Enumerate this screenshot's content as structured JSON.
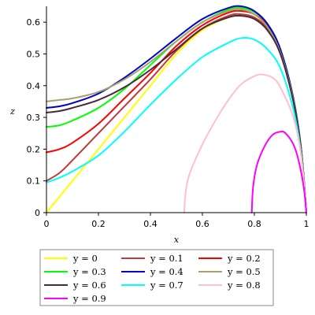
{
  "chart_data": {
    "type": "line",
    "title": "",
    "xlabel": "x",
    "ylabel": "z",
    "xlim": [
      0,
      1
    ],
    "ylim": [
      0,
      0.65
    ],
    "x_ticks": [
      "0",
      "0.2",
      "0.4",
      "0.6",
      "0.8",
      "1"
    ],
    "y_ticks": [
      "0",
      "0.1",
      "0.2",
      "0.3",
      "0.4",
      "0.5",
      "0.6"
    ],
    "grid": false,
    "legend_position": "bottom",
    "series": [
      {
        "name": "y = 0",
        "color": "#ffff00",
        "x": [
          0,
          0.05,
          0.1,
          0.2,
          0.3,
          0.4,
          0.5,
          0.6,
          0.7,
          0.75,
          0.8,
          0.85,
          0.9,
          0.95,
          0.98,
          1
        ],
        "y": [
          0,
          0.05,
          0.1,
          0.2,
          0.3,
          0.4,
          0.5,
          0.575,
          0.615,
          0.62,
          0.61,
          0.575,
          0.5,
          0.35,
          0.2,
          0
        ]
      },
      {
        "name": "y = 0.1",
        "color": "#c0393b",
        "x": [
          0,
          0.05,
          0.1,
          0.2,
          0.3,
          0.4,
          0.5,
          0.6,
          0.7,
          0.75,
          0.8,
          0.85,
          0.9,
          0.95,
          0.98,
          1
        ],
        "y": [
          0.1,
          0.125,
          0.165,
          0.25,
          0.335,
          0.42,
          0.51,
          0.58,
          0.62,
          0.625,
          0.615,
          0.58,
          0.505,
          0.355,
          0.2,
          0
        ]
      },
      {
        "name": "y = 0.2",
        "color": "#ff0000",
        "x": [
          0,
          0.05,
          0.1,
          0.2,
          0.3,
          0.4,
          0.5,
          0.6,
          0.7,
          0.75,
          0.8,
          0.85,
          0.9,
          0.95,
          0.98,
          1
        ],
        "y": [
          0.19,
          0.2,
          0.22,
          0.28,
          0.36,
          0.44,
          0.525,
          0.59,
          0.63,
          0.635,
          0.625,
          0.59,
          0.51,
          0.36,
          0.2,
          0
        ]
      },
      {
        "name": "y = 0.3",
        "color": "#00ff00",
        "x": [
          0,
          0.05,
          0.1,
          0.2,
          0.3,
          0.4,
          0.5,
          0.6,
          0.7,
          0.75,
          0.8,
          0.85,
          0.9,
          0.95,
          0.98,
          1
        ],
        "y": [
          0.27,
          0.275,
          0.29,
          0.33,
          0.39,
          0.465,
          0.54,
          0.6,
          0.64,
          0.645,
          0.632,
          0.595,
          0.515,
          0.362,
          0.2,
          0
        ]
      },
      {
        "name": "y = 0.4",
        "color": "#0000cc",
        "x": [
          0,
          0.05,
          0.1,
          0.2,
          0.3,
          0.4,
          0.5,
          0.6,
          0.7,
          0.75,
          0.8,
          0.85,
          0.9,
          0.95,
          0.98,
          1
        ],
        "y": [
          0.33,
          0.335,
          0.345,
          0.375,
          0.425,
          0.485,
          0.55,
          0.61,
          0.645,
          0.65,
          0.635,
          0.595,
          0.515,
          0.36,
          0.2,
          0
        ]
      },
      {
        "name": "y = 0.5",
        "color": "#a8a070",
        "x": [
          0,
          0.05,
          0.1,
          0.2,
          0.3,
          0.4,
          0.5,
          0.6,
          0.7,
          0.75,
          0.8,
          0.85,
          0.9,
          0.95,
          0.98,
          1
        ],
        "y": [
          0.35,
          0.355,
          0.36,
          0.38,
          0.42,
          0.475,
          0.54,
          0.6,
          0.635,
          0.64,
          0.625,
          0.585,
          0.505,
          0.355,
          0.2,
          0
        ]
      },
      {
        "name": "y = 0.6",
        "color": "#4a2a3a",
        "x": [
          0,
          0.05,
          0.1,
          0.2,
          0.3,
          0.4,
          0.5,
          0.6,
          0.7,
          0.75,
          0.8,
          0.85,
          0.9,
          0.95,
          0.98,
          1
        ],
        "y": [
          0.315,
          0.32,
          0.33,
          0.355,
          0.395,
          0.45,
          0.515,
          0.58,
          0.615,
          0.62,
          0.61,
          0.575,
          0.5,
          0.35,
          0.2,
          0
        ]
      },
      {
        "name": "y = 0.7",
        "color": "#00ffff",
        "x": [
          0,
          0.05,
          0.1,
          0.2,
          0.3,
          0.4,
          0.5,
          0.6,
          0.7,
          0.75,
          0.8,
          0.85,
          0.9,
          0.95,
          0.98,
          1
        ],
        "y": [
          0.095,
          0.11,
          0.13,
          0.18,
          0.255,
          0.34,
          0.42,
          0.49,
          0.535,
          0.55,
          0.545,
          0.515,
          0.455,
          0.325,
          0.185,
          0
        ]
      },
      {
        "name": "y = 0.8",
        "color": "#ffc0cb",
        "x": [
          0.53,
          0.535,
          0.55,
          0.6,
          0.65,
          0.7,
          0.75,
          0.8,
          0.83,
          0.87,
          0.9,
          0.95,
          0.98,
          1
        ],
        "y": [
          0,
          0.06,
          0.12,
          0.215,
          0.29,
          0.355,
          0.405,
          0.43,
          0.435,
          0.425,
          0.395,
          0.3,
          0.18,
          0
        ]
      },
      {
        "name": "y = 0.9",
        "color": "#ff00ff",
        "x": [
          0.79,
          0.795,
          0.81,
          0.84,
          0.87,
          0.9,
          0.92,
          0.95,
          0.97,
          0.99,
          1
        ],
        "y": [
          0,
          0.08,
          0.15,
          0.21,
          0.245,
          0.255,
          0.25,
          0.215,
          0.165,
          0.08,
          0
        ]
      }
    ]
  }
}
